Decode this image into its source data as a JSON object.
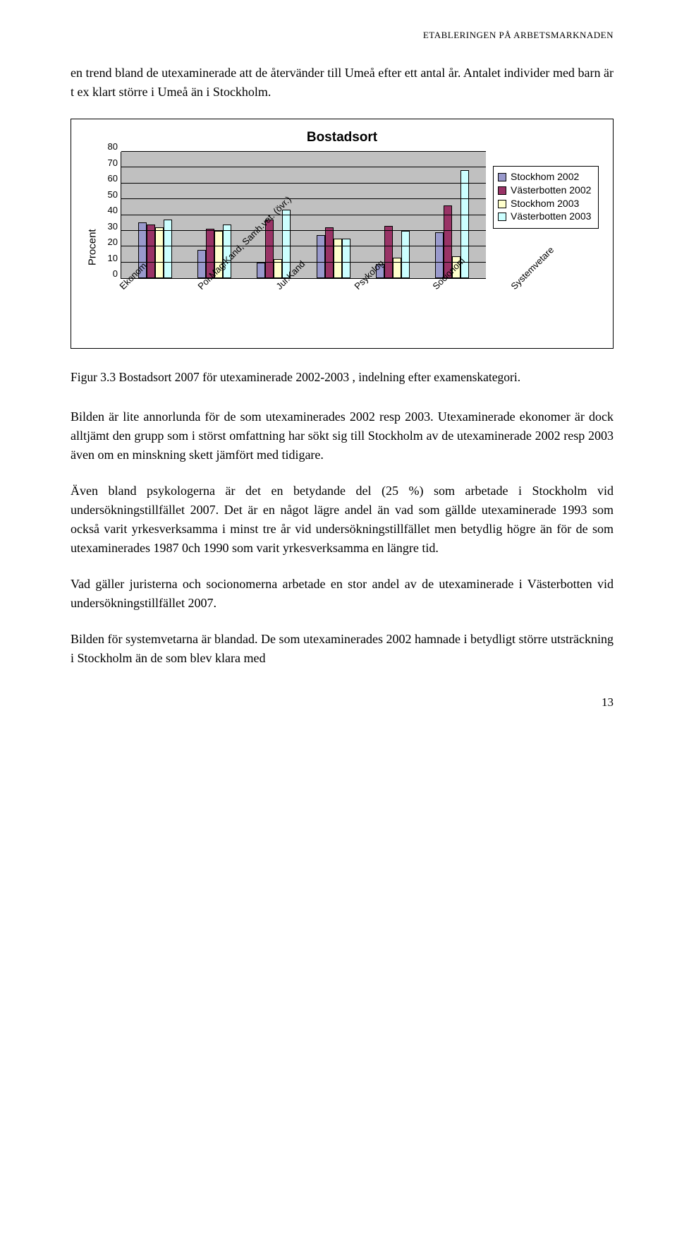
{
  "header": "ETABLERINGEN PÅ ARBETSMARKNADEN",
  "intro": "en trend bland de utexaminerade att de återvänder till Umeå efter ett antal år. Antalet individer med barn är t ex klart större i Umeå än i Stockholm.",
  "chart": {
    "title": "Bostadsort",
    "ylabel": "Procent",
    "ymax": 80,
    "ystep": 10,
    "plot_bg": "#c0c0c0",
    "grid_color": "#000000",
    "categories": [
      "Ekonom",
      "Pol.Mag/Kand, Samh.vet. (övr.)",
      "Jur.Kand",
      "Psykolog",
      "Socionom",
      "Systemvetare"
    ],
    "series": [
      {
        "label": "Stockhom 2002",
        "color": "#9999cc",
        "values": [
          35,
          18,
          10,
          27,
          9,
          29
        ]
      },
      {
        "label": "Västerbotten 2002",
        "color": "#993366",
        "values": [
          34,
          31,
          37,
          32,
          33,
          46
        ]
      },
      {
        "label": "Stockhom 2003",
        "color": "#ffffcc",
        "values": [
          32,
          30,
          12,
          25,
          13,
          14
        ]
      },
      {
        "label": "Västerbotten 2003",
        "color": "#ccffff",
        "values": [
          37,
          34,
          43,
          25,
          30,
          68
        ]
      }
    ]
  },
  "caption": "Figur 3.3 Bostadsort 2007 för utexaminerade 2002-2003 , indelning efter examenskategori.",
  "p1": "Bilden är lite annorlunda för de som utexaminerades 2002 resp 2003. Utexaminerade ekonomer är dock alltjämt den grupp som i störst omfattning har sökt sig till Stockholm av de utexaminerade 2002 resp 2003 även om en minskning skett jämfört med tidigare.",
  "p2": "Även bland psykologerna är det en betydande del (25 %) som arbetade i Stockholm vid undersökningstillfället 2007. Det är en något lägre andel än vad som gällde utexaminerade 1993 som också varit yrkesverksamma i minst tre år vid undersökningstillfället men betydlig högre än för de som utexaminerades 1987 0ch 1990 som varit yrkesverksamma en längre tid.",
  "p3": "Vad gäller juristerna och socionomerna arbetade en stor andel av de utexaminerade i Västerbotten vid undersökningstillfället 2007.",
  "p4": "Bilden för systemvetarna är blandad. De som utexaminerades 2002 hamnade i betydligt större utsträckning i Stockholm än de som blev klara med",
  "page_num": "13"
}
